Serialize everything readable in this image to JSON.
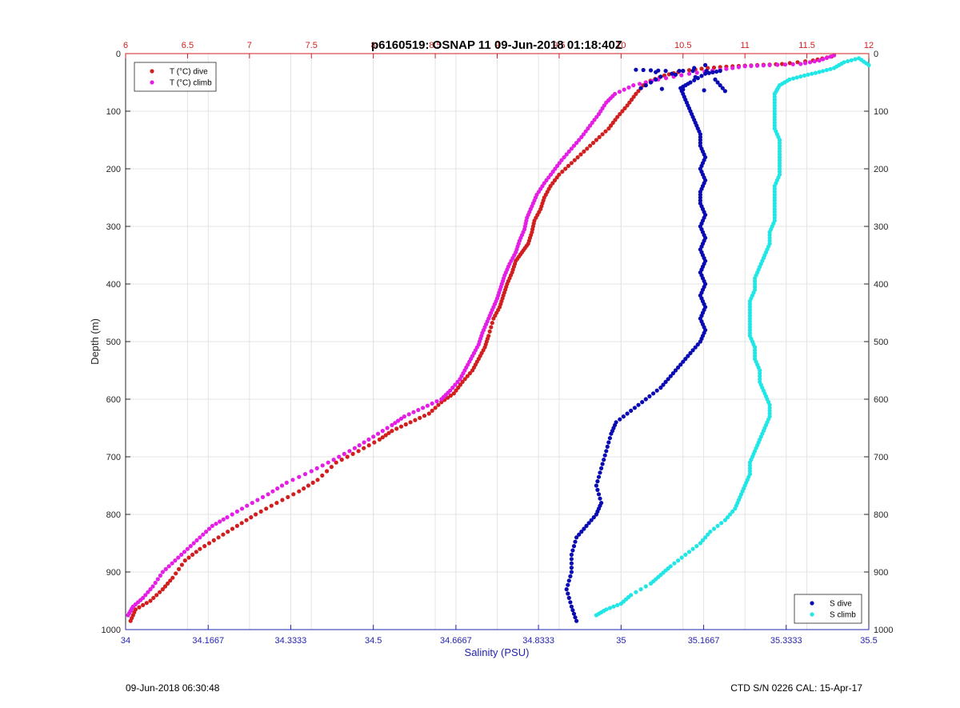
{
  "footer": {
    "left_timestamp": "09-Jun-2018 06:30:48",
    "right_info": "CTD S/N 0226  CAL: 15-Apr-17"
  },
  "chart_data": {
    "type": "scatter",
    "title": "p6160519: OSNAP 11 09-Jun-2018 01:18:40Z",
    "ylabel": "Depth (m)",
    "xlabel_bottom": "Salinity (PSU)",
    "xlabel_top": "",
    "y_axis": {
      "range": [
        0,
        1000
      ],
      "reversed": true,
      "ticks": [
        "0",
        "100",
        "200",
        "300",
        "400",
        "500",
        "600",
        "700",
        "800",
        "900",
        "1000"
      ]
    },
    "x_top": {
      "range": [
        6,
        12
      ],
      "color": "#d11f1f",
      "ticks": [
        "6",
        "6.5",
        "7",
        "7.5",
        "8",
        "8.5",
        "9",
        "9.5",
        "10",
        "10.5",
        "11",
        "11.5",
        "12"
      ],
      "tick_values": [
        6,
        6.5,
        7,
        7.5,
        8,
        8.5,
        9,
        9.5,
        10,
        10.5,
        11,
        11.5,
        12
      ]
    },
    "x_bottom": {
      "range": [
        34,
        35.5
      ],
      "color": "#2323b0",
      "ticks": [
        "34",
        "34.1667",
        "34.3333",
        "34.5",
        "34.6667",
        "34.8333",
        "35",
        "35.1667",
        "35.3333",
        "35.5"
      ],
      "tick_values": [
        34,
        34.1667,
        34.3333,
        34.5,
        34.6667,
        34.8333,
        35,
        35.1667,
        35.3333,
        35.5
      ]
    },
    "grid": true,
    "legend_temperature": {
      "placement": "top-left",
      "entries": [
        {
          "label": "T (°C) dive",
          "color": "#d11f1f"
        },
        {
          "label": "T (°C) climb",
          "color": "#e41ee4"
        }
      ]
    },
    "legend_salinity": {
      "placement": "bottom-right",
      "entries": [
        {
          "label": "S dive",
          "color": "#0a0ab4"
        },
        {
          "label": "S climb",
          "color": "#21e6e6"
        }
      ]
    },
    "series": [
      {
        "name": "T (°C) dive",
        "axis": "top",
        "color": "#d11f1f",
        "points": [
          [
            6.04,
            985
          ],
          [
            6.08,
            965
          ],
          [
            6.2,
            950
          ],
          [
            6.3,
            930
          ],
          [
            6.38,
            910
          ],
          [
            6.48,
            880
          ],
          [
            6.6,
            860
          ],
          [
            6.75,
            840
          ],
          [
            6.9,
            820
          ],
          [
            7.05,
            800
          ],
          [
            7.22,
            780
          ],
          [
            7.4,
            760
          ],
          [
            7.55,
            740
          ],
          [
            7.7,
            710
          ],
          [
            7.88,
            690
          ],
          [
            8.05,
            670
          ],
          [
            8.15,
            655
          ],
          [
            8.3,
            640
          ],
          [
            8.45,
            625
          ],
          [
            8.55,
            605
          ],
          [
            8.65,
            590
          ],
          [
            8.72,
            570
          ],
          [
            8.8,
            550
          ],
          [
            8.85,
            530
          ],
          [
            8.9,
            510
          ],
          [
            8.93,
            490
          ],
          [
            8.97,
            460
          ],
          [
            9.02,
            440
          ],
          [
            9.05,
            420
          ],
          [
            9.08,
            400
          ],
          [
            9.12,
            380
          ],
          [
            9.15,
            360
          ],
          [
            9.2,
            345
          ],
          [
            9.25,
            330
          ],
          [
            9.28,
            310
          ],
          [
            9.3,
            290
          ],
          [
            9.35,
            270
          ],
          [
            9.38,
            250
          ],
          [
            9.43,
            230
          ],
          [
            9.5,
            210
          ],
          [
            9.6,
            190
          ],
          [
            9.7,
            170
          ],
          [
            9.8,
            150
          ],
          [
            9.9,
            130
          ],
          [
            9.97,
            110
          ],
          [
            10.05,
            90
          ],
          [
            10.12,
            70
          ],
          [
            10.2,
            50
          ],
          [
            10.35,
            38
          ],
          [
            10.5,
            30
          ],
          [
            10.7,
            25
          ],
          [
            10.9,
            22
          ],
          [
            11.1,
            20
          ],
          [
            11.3,
            18
          ],
          [
            11.55,
            12
          ],
          [
            11.7,
            5
          ]
        ]
      },
      {
        "name": "T (°C) climb",
        "axis": "top",
        "color": "#e41ee4",
        "points": [
          [
            6.02,
            975
          ],
          [
            6.06,
            960
          ],
          [
            6.14,
            945
          ],
          [
            6.22,
            925
          ],
          [
            6.3,
            900
          ],
          [
            6.4,
            880
          ],
          [
            6.5,
            860
          ],
          [
            6.6,
            840
          ],
          [
            6.7,
            820
          ],
          [
            6.82,
            805
          ],
          [
            6.98,
            785
          ],
          [
            7.15,
            765
          ],
          [
            7.3,
            745
          ],
          [
            7.5,
            725
          ],
          [
            7.68,
            705
          ],
          [
            7.85,
            685
          ],
          [
            8.0,
            665
          ],
          [
            8.15,
            645
          ],
          [
            8.25,
            630
          ],
          [
            8.4,
            615
          ],
          [
            8.55,
            600
          ],
          [
            8.62,
            585
          ],
          [
            8.7,
            565
          ],
          [
            8.75,
            545
          ],
          [
            8.8,
            525
          ],
          [
            8.85,
            505
          ],
          [
            8.88,
            485
          ],
          [
            8.92,
            465
          ],
          [
            8.96,
            445
          ],
          [
            9.0,
            425
          ],
          [
            9.03,
            405
          ],
          [
            9.06,
            385
          ],
          [
            9.1,
            365
          ],
          [
            9.15,
            345
          ],
          [
            9.18,
            325
          ],
          [
            9.22,
            305
          ],
          [
            9.24,
            285
          ],
          [
            9.28,
            265
          ],
          [
            9.32,
            245
          ],
          [
            9.38,
            225
          ],
          [
            9.45,
            205
          ],
          [
            9.52,
            185
          ],
          [
            9.6,
            165
          ],
          [
            9.68,
            145
          ],
          [
            9.75,
            125
          ],
          [
            9.82,
            105
          ],
          [
            9.88,
            85
          ],
          [
            9.95,
            70
          ],
          [
            10.1,
            55
          ],
          [
            10.3,
            45
          ],
          [
            10.55,
            35
          ],
          [
            10.8,
            28
          ],
          [
            11.0,
            22
          ],
          [
            11.2,
            20
          ],
          [
            11.45,
            18
          ],
          [
            11.6,
            12
          ],
          [
            11.72,
            3
          ]
        ]
      },
      {
        "name": "S dive",
        "axis": "bottom",
        "color": "#0a0ab4",
        "points": [
          [
            34.91,
            985
          ],
          [
            34.9,
            960
          ],
          [
            34.89,
            930
          ],
          [
            34.9,
            900
          ],
          [
            34.9,
            870
          ],
          [
            34.91,
            840
          ],
          [
            34.93,
            820
          ],
          [
            34.95,
            800
          ],
          [
            34.96,
            780
          ],
          [
            34.95,
            750
          ],
          [
            34.96,
            720
          ],
          [
            34.97,
            690
          ],
          [
            34.98,
            660
          ],
          [
            34.99,
            640
          ],
          [
            35.02,
            620
          ],
          [
            35.05,
            600
          ],
          [
            35.08,
            580
          ],
          [
            35.1,
            560
          ],
          [
            35.12,
            540
          ],
          [
            35.14,
            520
          ],
          [
            35.16,
            500
          ],
          [
            35.17,
            480
          ],
          [
            35.16,
            460
          ],
          [
            35.17,
            440
          ],
          [
            35.16,
            420
          ],
          [
            35.17,
            400
          ],
          [
            35.16,
            380
          ],
          [
            35.17,
            360
          ],
          [
            35.16,
            340
          ],
          [
            35.17,
            320
          ],
          [
            35.16,
            300
          ],
          [
            35.17,
            280
          ],
          [
            35.16,
            260
          ],
          [
            35.16,
            240
          ],
          [
            35.17,
            220
          ],
          [
            35.16,
            200
          ],
          [
            35.17,
            180
          ],
          [
            35.16,
            160
          ],
          [
            35.16,
            140
          ],
          [
            35.15,
            120
          ],
          [
            35.14,
            100
          ],
          [
            35.13,
            80
          ],
          [
            35.12,
            60
          ],
          [
            35.14,
            50
          ],
          [
            35.17,
            35
          ],
          [
            35.2,
            30
          ],
          [
            35.09,
            30
          ],
          [
            35.03,
            28
          ],
          [
            35.19,
            45
          ],
          [
            35.21,
            65
          ],
          [
            35.04,
            60
          ],
          [
            35.08,
            40
          ],
          [
            35.17,
            20
          ]
        ]
      },
      {
        "name": "S climb",
        "axis": "bottom",
        "color": "#21e6e6",
        "points": [
          [
            34.95,
            975
          ],
          [
            34.97,
            965
          ],
          [
            35.0,
            955
          ],
          [
            35.02,
            940
          ],
          [
            35.06,
            920
          ],
          [
            35.08,
            905
          ],
          [
            35.1,
            890
          ],
          [
            35.13,
            870
          ],
          [
            35.16,
            850
          ],
          [
            35.18,
            830
          ],
          [
            35.21,
            810
          ],
          [
            35.23,
            790
          ],
          [
            35.24,
            770
          ],
          [
            35.25,
            750
          ],
          [
            35.26,
            730
          ],
          [
            35.26,
            710
          ],
          [
            35.27,
            690
          ],
          [
            35.28,
            670
          ],
          [
            35.29,
            650
          ],
          [
            35.3,
            630
          ],
          [
            35.3,
            610
          ],
          [
            35.29,
            590
          ],
          [
            35.28,
            570
          ],
          [
            35.28,
            550
          ],
          [
            35.27,
            530
          ],
          [
            35.27,
            510
          ],
          [
            35.26,
            490
          ],
          [
            35.26,
            470
          ],
          [
            35.26,
            450
          ],
          [
            35.26,
            430
          ],
          [
            35.27,
            410
          ],
          [
            35.27,
            390
          ],
          [
            35.28,
            370
          ],
          [
            35.29,
            350
          ],
          [
            35.3,
            330
          ],
          [
            35.3,
            310
          ],
          [
            35.31,
            290
          ],
          [
            35.31,
            270
          ],
          [
            35.31,
            250
          ],
          [
            35.31,
            230
          ],
          [
            35.32,
            210
          ],
          [
            35.32,
            190
          ],
          [
            35.32,
            170
          ],
          [
            35.32,
            150
          ],
          [
            35.31,
            130
          ],
          [
            35.31,
            110
          ],
          [
            35.31,
            90
          ],
          [
            35.31,
            70
          ],
          [
            35.32,
            55
          ],
          [
            35.34,
            45
          ],
          [
            35.37,
            38
          ],
          [
            35.4,
            32
          ],
          [
            35.43,
            25
          ],
          [
            35.45,
            15
          ],
          [
            35.48,
            8
          ],
          [
            35.5,
            20
          ]
        ]
      }
    ]
  }
}
